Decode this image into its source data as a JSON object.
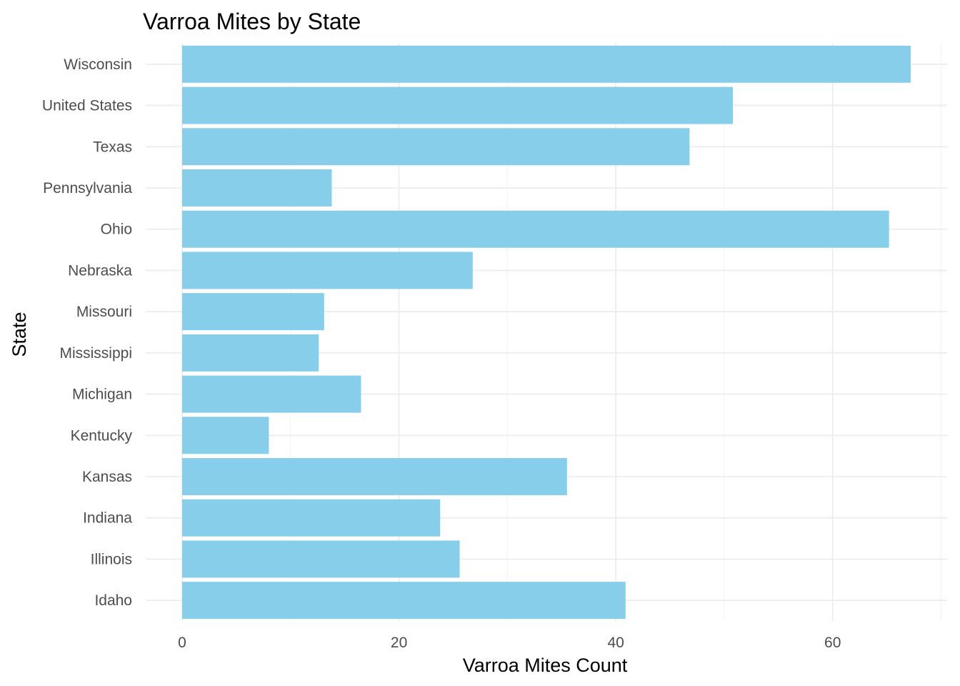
{
  "chart_data": {
    "type": "bar",
    "orientation": "horizontal",
    "title": "Varroa Mites by State",
    "xlabel": "Varroa Mites Count",
    "ylabel": "State",
    "categories": [
      "Idaho",
      "Illinois",
      "Indiana",
      "Kansas",
      "Kentucky",
      "Michigan",
      "Mississippi",
      "Missouri",
      "Nebraska",
      "Ohio",
      "Pennsylvania",
      "Texas",
      "United States",
      "Wisconsin"
    ],
    "values": [
      40.9,
      25.6,
      23.8,
      35.5,
      8.0,
      16.5,
      12.6,
      13.1,
      26.8,
      65.2,
      13.8,
      46.8,
      50.8,
      67.2
    ],
    "xlim": [
      -3.36,
      70.56
    ],
    "xticks": [
      0,
      20,
      40,
      60
    ],
    "bar_color": "#87ceeb",
    "grid": true,
    "legend": "none"
  }
}
